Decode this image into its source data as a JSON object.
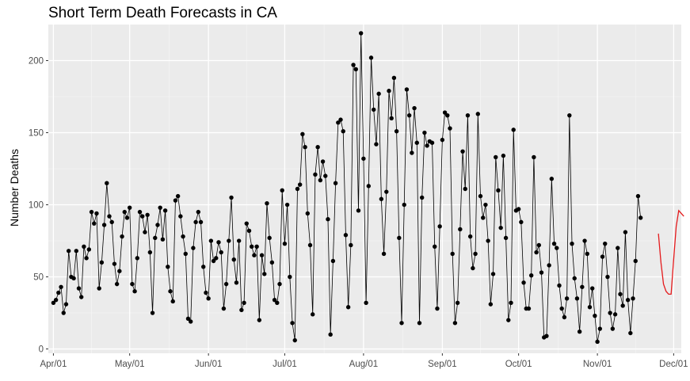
{
  "chart_data": {
    "type": "line",
    "title": "Short Term Death Forecasts in CA",
    "xlabel": "",
    "ylabel": "Number Deaths",
    "x_ticks": [
      "Apr/01",
      "May/01",
      "Jun/01",
      "Jul/01",
      "Aug/01",
      "Sep/01",
      "Oct/01",
      "Nov/01",
      "Dec/01"
    ],
    "x_start": "2020-04-01",
    "y_ticks": [
      0,
      50,
      100,
      150,
      200
    ],
    "ylim": [
      -3,
      225
    ],
    "grid": true,
    "series": [
      {
        "role": "observed",
        "color": "#000000",
        "markers": true,
        "values": [
          32,
          34,
          39,
          43,
          25,
          31,
          68,
          50,
          49,
          68,
          42,
          36,
          71,
          63,
          69,
          95,
          87,
          94,
          42,
          60,
          86,
          115,
          92,
          88,
          59,
          45,
          54,
          78,
          95,
          91,
          98,
          45,
          40,
          63,
          95,
          92,
          81,
          93,
          67,
          25,
          77,
          86,
          98,
          76,
          96,
          57,
          40,
          33,
          103,
          106,
          92,
          78,
          66,
          21,
          19,
          70,
          88,
          95,
          88,
          57,
          39,
          35,
          75,
          61,
          63,
          74,
          67,
          28,
          45,
          75,
          105,
          62,
          46,
          75,
          27,
          32,
          87,
          82,
          71,
          65,
          71,
          20,
          65,
          52,
          101,
          77,
          60,
          34,
          32,
          45,
          110,
          73,
          100,
          50,
          18,
          6,
          111,
          114,
          149,
          140,
          94,
          72,
          24,
          121,
          140,
          117,
          130,
          120,
          90,
          10,
          61,
          115,
          157,
          159,
          151,
          79,
          29,
          72,
          197,
          194,
          96,
          219,
          132,
          32,
          113,
          202,
          166,
          142,
          177,
          104,
          66,
          109,
          179,
          160,
          188,
          151,
          77,
          18,
          100,
          180,
          162,
          136,
          167,
          143,
          18,
          105,
          150,
          141,
          144,
          143,
          71,
          28,
          85,
          145,
          164,
          162,
          153,
          66,
          18,
          32,
          83,
          137,
          111,
          162,
          78,
          56,
          66,
          163,
          106,
          91,
          100,
          75,
          31,
          52,
          133,
          110,
          84,
          134,
          77,
          20,
          32,
          152,
          96,
          97,
          88,
          46,
          28,
          28,
          51,
          133,
          67,
          72,
          53,
          8,
          9,
          58,
          118,
          73,
          70,
          44,
          28,
          22,
          35,
          162,
          73,
          49,
          35,
          12,
          43,
          75,
          66,
          29,
          42,
          23,
          5,
          14,
          64,
          73,
          50,
          25,
          14,
          24,
          70,
          38,
          30,
          81,
          34,
          11,
          35,
          61,
          106,
          91
        ]
      },
      {
        "role": "forecast",
        "color": "#e41a1c",
        "markers": false,
        "start_index": 238,
        "values": [
          80,
          60,
          45,
          40,
          38,
          38,
          62,
          85,
          96,
          94,
          92
        ]
      }
    ]
  }
}
